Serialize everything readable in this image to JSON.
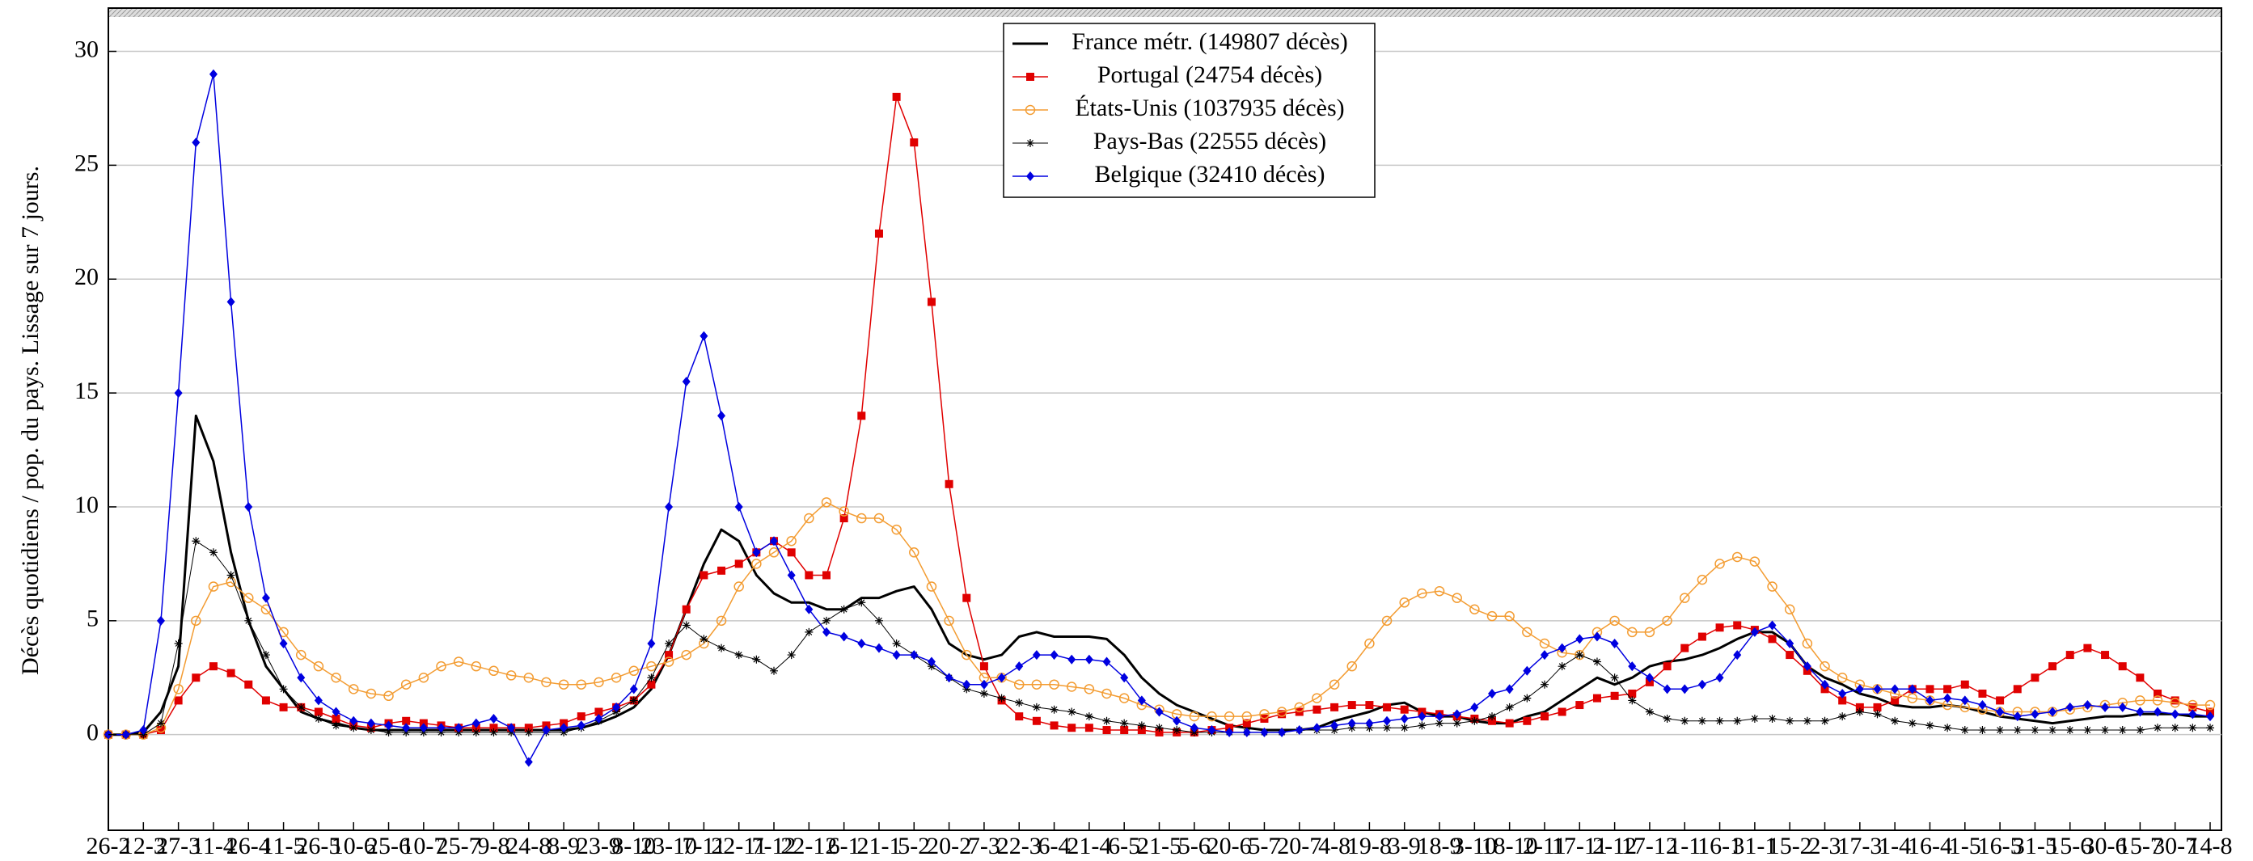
{
  "chart_data": {
    "type": "line",
    "y_label": "Décès quotidiens / pop. du pays. Lissage sur 7 jours.",
    "categories": [
      "26-2",
      null,
      "12-3",
      null,
      "27-3",
      null,
      "11-4",
      null,
      "26-4",
      null,
      "11-5",
      null,
      "26-5",
      null,
      "10-6",
      null,
      "25-6",
      null,
      "10-7",
      null,
      "25-7",
      null,
      "9-8",
      null,
      "24-8",
      null,
      "8-9",
      null,
      "23-9",
      null,
      "8-10",
      null,
      "23-10",
      null,
      "7-11",
      null,
      "22-11",
      null,
      "7-12",
      null,
      "22-12",
      null,
      "6-1",
      null,
      "21-1",
      null,
      "5-2",
      null,
      "20-2",
      null,
      "7-3",
      null,
      "22-3",
      null,
      "6-4",
      null,
      "21-4",
      null,
      "6-5",
      null,
      "21-5",
      null,
      "5-6",
      null,
      "20-6",
      null,
      "5-7",
      null,
      "20-7",
      null,
      "4-8",
      null,
      "19-8",
      null,
      "3-9",
      null,
      "18-9",
      null,
      "3-10",
      null,
      "18-10",
      null,
      "2-11",
      null,
      "17-11",
      null,
      "2-12",
      null,
      "17-12",
      null,
      "1-1",
      null,
      "16-1",
      null,
      "31-1",
      null,
      "15-2",
      null,
      "2-3",
      null,
      "17-3",
      null,
      "1-4",
      null,
      "16-4",
      null,
      "1-5",
      null,
      "16-5",
      null,
      "31-5",
      null,
      "15-6",
      null,
      "30-6",
      null,
      "15-7",
      null,
      "30-7",
      null,
      "14-8"
    ],
    "series": [
      {
        "name": "France métr. (149807 décès)",
        "color": "#000000",
        "width": 3,
        "values": [
          0,
          0,
          0.1,
          1,
          3,
          14,
          12,
          8,
          5,
          3,
          2,
          1,
          0.7,
          0.5,
          0.3,
          0.2,
          0.2,
          0.2,
          0.2,
          0.2,
          0.2,
          0.2,
          0.2,
          0.2,
          0.2,
          0.2,
          0.2,
          0.3,
          0.5,
          0.8,
          1.2,
          2,
          3.5,
          5.5,
          7.5,
          9,
          8.5,
          7,
          6.2,
          5.8,
          5.8,
          5.5,
          5.5,
          6,
          6,
          6.3,
          6.5,
          5.5,
          4,
          3.5,
          3.3,
          3.5,
          4.3,
          4.5,
          4.3,
          4.3,
          4.3,
          4.2,
          3.5,
          2.5,
          1.8,
          1.3,
          1,
          0.7,
          0.4,
          0.3,
          0.2,
          0.2,
          0.2,
          0.3,
          0.6,
          0.8,
          1,
          1.3,
          1.4,
          1,
          0.8,
          0.8,
          0.6,
          0.5,
          0.5,
          0.8,
          1,
          1.5,
          2,
          2.5,
          2.2,
          2.5,
          3,
          3.2,
          3.3,
          3.5,
          3.8,
          4.2,
          4.5,
          4.5,
          4,
          3,
          2.5,
          2.2,
          1.8,
          1.6,
          1.3,
          1.2,
          1.2,
          1.3,
          1.2,
          1,
          0.8,
          0.7,
          0.6,
          0.5,
          0.6,
          0.7,
          0.8,
          0.8,
          0.9,
          0.9,
          0.9,
          0.8,
          0.8
        ]
      },
      {
        "name": "Portugal (24754 décès)",
        "color": "#e00000",
        "width": 1.5,
        "marker": "square",
        "values": [
          0,
          0,
          0,
          0.2,
          1.5,
          2.5,
          3,
          2.7,
          2.2,
          1.5,
          1.2,
          1.2,
          1,
          0.7,
          0.4,
          0.3,
          0.5,
          0.6,
          0.5,
          0.4,
          0.3,
          0.3,
          0.3,
          0.3,
          0.3,
          0.4,
          0.5,
          0.8,
          1,
          1.2,
          1.5,
          2.2,
          3.5,
          5.5,
          7,
          7.2,
          7.5,
          8,
          8.5,
          8,
          7,
          7,
          9.5,
          14,
          22,
          28,
          26,
          19,
          11,
          6,
          3,
          1.5,
          0.8,
          0.6,
          0.4,
          0.3,
          0.3,
          0.2,
          0.2,
          0.2,
          0.1,
          0.1,
          0.1,
          0.2,
          0.3,
          0.5,
          0.7,
          0.9,
          1,
          1.1,
          1.2,
          1.3,
          1.3,
          1.2,
          1.1,
          1,
          0.9,
          0.8,
          0.7,
          0.6,
          0.5,
          0.6,
          0.8,
          1,
          1.3,
          1.6,
          1.7,
          1.8,
          2.3,
          3,
          3.8,
          4.3,
          4.7,
          4.8,
          4.6,
          4.2,
          3.5,
          2.8,
          2,
          1.5,
          1.2,
          1.2,
          1.5,
          2,
          2,
          2,
          2.2,
          1.8,
          1.5,
          2,
          2.5,
          3,
          3.5,
          3.8,
          3.5,
          3,
          2.5,
          1.8,
          1.5,
          1.2,
          1
        ]
      },
      {
        "name": "États-Unis (1037935 décès)",
        "color": "#f39c32",
        "width": 1.5,
        "marker": "circle",
        "values": [
          0,
          0,
          0,
          0.3,
          2,
          5,
          6.5,
          6.7,
          6,
          5.5,
          4.5,
          3.5,
          3,
          2.5,
          2,
          1.8,
          1.7,
          2.2,
          2.5,
          3,
          3.2,
          3,
          2.8,
          2.6,
          2.5,
          2.3,
          2.2,
          2.2,
          2.3,
          2.5,
          2.8,
          3,
          3.2,
          3.5,
          4,
          5,
          6.5,
          7.5,
          8,
          8.5,
          9.5,
          10.2,
          9.8,
          9.5,
          9.5,
          9,
          8,
          6.5,
          5,
          3.5,
          2.5,
          2.5,
          2.2,
          2.2,
          2.2,
          2.1,
          2,
          1.8,
          1.6,
          1.3,
          1.1,
          0.9,
          0.8,
          0.8,
          0.8,
          0.8,
          0.9,
          1,
          1.2,
          1.6,
          2.2,
          3,
          4,
          5,
          5.8,
          6.2,
          6.3,
          6,
          5.5,
          5.2,
          5.2,
          4.5,
          4,
          3.6,
          3.5,
          4.5,
          5,
          4.5,
          4.5,
          5,
          6,
          6.8,
          7.5,
          7.8,
          7.6,
          6.5,
          5.5,
          4,
          3,
          2.5,
          2.2,
          2,
          1.8,
          1.6,
          1.5,
          1.3,
          1.2,
          1.1,
          1,
          1,
          1,
          1,
          1.1,
          1.2,
          1.3,
          1.4,
          1.5,
          1.5,
          1.4,
          1.3,
          1.3
        ]
      },
      {
        "name": "Pays-Bas (22555 décès)",
        "color": "#000000",
        "width": 1,
        "marker": "star",
        "values": [
          0,
          0,
          0,
          0.5,
          4,
          8.5,
          8,
          7,
          5,
          3.5,
          2,
          1.2,
          0.7,
          0.4,
          0.3,
          0.2,
          0.1,
          0.1,
          0.1,
          0.1,
          0.1,
          0.1,
          0.1,
          0.1,
          0.1,
          0.1,
          0.1,
          0.3,
          0.6,
          1,
          1.5,
          2.5,
          4,
          4.8,
          4.2,
          3.8,
          3.5,
          3.3,
          2.8,
          3.5,
          4.5,
          5,
          5.5,
          5.8,
          5,
          4,
          3.5,
          3,
          2.5,
          2,
          1.8,
          1.6,
          1.4,
          1.2,
          1.1,
          1,
          0.8,
          0.6,
          0.5,
          0.4,
          0.3,
          0.2,
          0.1,
          0.1,
          0.1,
          0.1,
          0.1,
          0.1,
          0.2,
          0.2,
          0.2,
          0.3,
          0.3,
          0.3,
          0.3,
          0.4,
          0.5,
          0.5,
          0.6,
          0.8,
          1.2,
          1.6,
          2.2,
          3,
          3.5,
          3.2,
          2.5,
          1.5,
          1,
          0.7,
          0.6,
          0.6,
          0.6,
          0.6,
          0.7,
          0.7,
          0.6,
          0.6,
          0.6,
          0.8,
          1,
          0.9,
          0.6,
          0.5,
          0.4,
          0.3,
          0.2,
          0.2,
          0.2,
          0.2,
          0.2,
          0.2,
          0.2,
          0.2,
          0.2,
          0.2,
          0.2,
          0.3,
          0.3,
          0.3,
          0.3
        ]
      },
      {
        "name": "Belgique (32410 décès)",
        "color": "#0000e0",
        "width": 1.5,
        "marker": "diamond",
        "values": [
          0,
          0,
          0.2,
          5,
          15,
          26,
          29,
          19,
          10,
          6,
          4,
          2.5,
          1.5,
          1,
          0.6,
          0.5,
          0.4,
          0.3,
          0.3,
          0.3,
          0.3,
          0.5,
          0.7,
          0.3,
          -1.2,
          0.2,
          0.3,
          0.4,
          0.7,
          1.2,
          2,
          4,
          10,
          15.5,
          17.5,
          14,
          10,
          8,
          8.5,
          7,
          5.5,
          4.5,
          4.3,
          4,
          3.8,
          3.5,
          3.5,
          3.2,
          2.5,
          2.2,
          2.2,
          2.5,
          3,
          3.5,
          3.5,
          3.3,
          3.3,
          3.2,
          2.5,
          1.5,
          1,
          0.6,
          0.3,
          0.2,
          0.1,
          0.1,
          0.1,
          0.1,
          0.2,
          0.3,
          0.4,
          0.5,
          0.5,
          0.6,
          0.7,
          0.8,
          0.8,
          0.9,
          1.2,
          1.8,
          2,
          2.8,
          3.5,
          3.8,
          4.2,
          4.3,
          4,
          3,
          2.5,
          2,
          2,
          2.2,
          2.5,
          3.5,
          4.5,
          4.8,
          4,
          3,
          2.2,
          1.8,
          2,
          2,
          2,
          2,
          1.5,
          1.6,
          1.5,
          1.3,
          1,
          0.8,
          0.9,
          1,
          1.2,
          1.3,
          1.2,
          1.2,
          1,
          1,
          0.9,
          0.9,
          0.8
        ]
      }
    ],
    "ylim": [
      -4.2,
      31.9
    ],
    "yticks": [
      0,
      5,
      10,
      15,
      20,
      25,
      30
    ],
    "grid": true,
    "legend": "upper center"
  }
}
